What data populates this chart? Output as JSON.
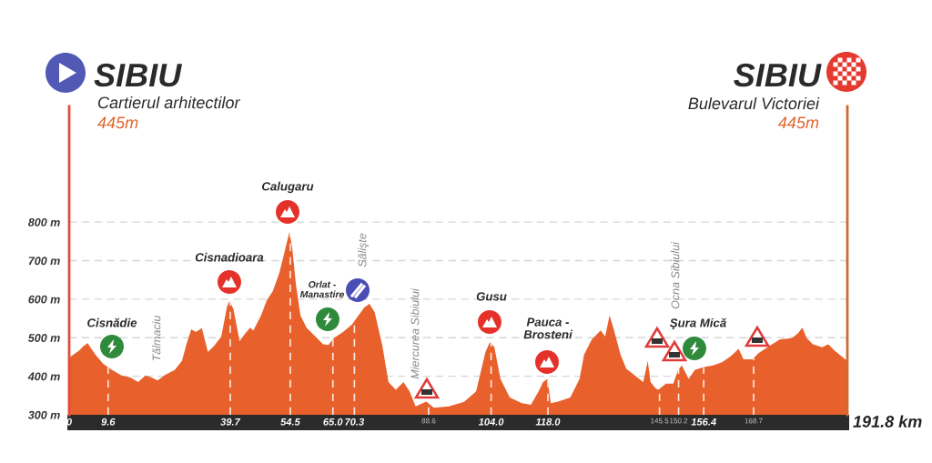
{
  "chart_data": {
    "type": "area",
    "color": "#e8612c",
    "x": [
      0,
      1.3,
      2.5,
      3.5,
      4.6,
      5.2,
      6.5,
      8.4,
      10.6,
      12.9,
      15.1,
      17.0,
      18.8,
      20.3,
      21.8,
      23.7,
      26.0,
      27.8,
      28.9,
      30.1,
      31.2,
      32.7,
      34.2,
      35.7,
      37.5,
      38.9,
      39.5,
      40.5,
      42.0,
      43.1,
      44.6,
      45.4,
      47.3,
      48.7,
      50.2,
      51.8,
      52.9,
      54.3,
      55.0,
      55.9,
      57.0,
      58.5,
      60.7,
      62.6,
      63.9,
      65.2,
      67.5,
      69.7,
      72.7,
      74.0,
      75.3,
      77.2,
      78.7,
      80.5,
      82.4,
      83.9,
      85.4,
      88.0,
      89.9,
      93.6,
      97.4,
      100.3,
      102.6,
      103.7,
      104.8,
      106.3,
      108.6,
      111.6,
      113.8,
      115.7,
      116.8,
      117.9,
      118.7,
      120.5,
      123.5,
      125.8,
      126.9,
      128.8,
      131.0,
      132.1,
      133.2,
      134.3,
      135.9,
      137.3,
      139.2,
      141.5,
      142.6,
      143.3,
      144.5,
      145.2,
      147.1,
      148.9,
      150.1,
      151.0,
      152.7,
      154.2,
      156.4,
      158.7,
      160.9,
      163.1,
      165.0,
      166.2,
      168.4,
      169.9,
      172.1,
      175.1,
      178.1,
      179.6,
      180.7,
      181.8,
      183.3,
      185.6,
      187.1,
      188.6,
      190.8,
      191.8
    ],
    "values": [
      448,
      458,
      467,
      478,
      486,
      475,
      456,
      432,
      416,
      402,
      397,
      385,
      402,
      397,
      389,
      404,
      416,
      440,
      483,
      522,
      515,
      525,
      463,
      479,
      503,
      581,
      595,
      574,
      491,
      507,
      526,
      519,
      558,
      597,
      621,
      668,
      715,
      775,
      731,
      637,
      558,
      526,
      503,
      483,
      481,
      499,
      515,
      534,
      578,
      588,
      566,
      479,
      385,
      365,
      385,
      361,
      322,
      334,
      318,
      322,
      334,
      361,
      463,
      489,
      475,
      393,
      345,
      330,
      326,
      361,
      385,
      393,
      330,
      334,
      345,
      393,
      456,
      495,
      519,
      503,
      558,
      519,
      456,
      420,
      404,
      385,
      440,
      385,
      369,
      365,
      381,
      381,
      416,
      428,
      393,
      416,
      424,
      428,
      436,
      452,
      471,
      444,
      444,
      460,
      475,
      495,
      499,
      511,
      526,
      499,
      483,
      475,
      483,
      467,
      448,
      440
    ],
    "xlim": [
      0,
      191.8
    ],
    "ylim": [
      300,
      1100
    ],
    "xticks": [
      0,
      9.6,
      39.7,
      54.5,
      {
        "value": 65,
        "label": "65.0"
      },
      70.3,
      88.6,
      {
        "value": 104,
        "label": "104.0"
      },
      {
        "value": 118,
        "label": "118.0"
      },
      145.5,
      150.2,
      156.4,
      168.7
    ],
    "yticks": [
      {
        "value": 300,
        "label": "300 m"
      },
      {
        "value": 400,
        "label": "400 m"
      },
      {
        "value": 500,
        "label": "500 m"
      },
      {
        "value": 600,
        "label": "600 m"
      },
      {
        "value": 700,
        "label": "700 m"
      },
      {
        "value": 800,
        "label": "800 m"
      }
    ],
    "xlabel": "191.8 km",
    "grid": true,
    "annotations": [
      "SIBIU",
      "Cartierul arhitectilor",
      "445m",
      "SIBIU",
      "Bulevarul Victoriei",
      "445m",
      "Cisnădie",
      "Tălmaciu",
      "Cisnadioara",
      "Calugaru",
      "Orlat -\nManastire",
      "Sălişte",
      "Miercurea Sibiului",
      "Gusu",
      "Pauca -\nBrosteni",
      "Ocna Sibiului",
      "Şura Mică"
    ]
  }
}
